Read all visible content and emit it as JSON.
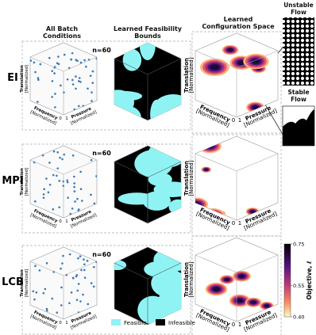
{
  "columns": {
    "batch": "All Batch Conditions",
    "feasibility": "Learned Feasibility Bounds",
    "configuration": "Learned Configuration Space"
  },
  "flow_images": {
    "unstable": "Unstable Flow",
    "stable": "Stable Flow"
  },
  "rows": [
    {
      "label": "EI",
      "n": "n=60"
    },
    {
      "label": "MPI",
      "n": "n=60"
    },
    {
      "label": "LCB",
      "n": "n=60"
    }
  ],
  "axes": {
    "translation": "Translation",
    "frequency": "Frequency",
    "pressure": "Pressure",
    "unit": "[Normalized]",
    "tick_min": "0",
    "tick_max": "1"
  },
  "legend": {
    "feasible": "Feasible",
    "infeasible": "Infeasible"
  },
  "colorbar": {
    "label": "Objective, ℓ",
    "lim": [
      0.4,
      0.75
    ],
    "ticks": [
      {
        "value": 0.75,
        "label": "0.75"
      },
      {
        "value": 0.55,
        "label": "0.55"
      },
      {
        "value": 0.4,
        "label": "0.40"
      }
    ]
  }
}
